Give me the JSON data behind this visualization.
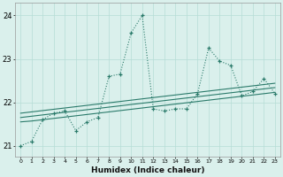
{
  "x": [
    0,
    1,
    2,
    3,
    4,
    5,
    6,
    7,
    8,
    9,
    10,
    11,
    12,
    13,
    14,
    15,
    16,
    17,
    18,
    19,
    20,
    21,
    22,
    23
  ],
  "y_main": [
    21.0,
    21.1,
    21.6,
    21.75,
    21.8,
    21.35,
    21.55,
    21.65,
    22.6,
    22.65,
    23.6,
    24.0,
    21.85,
    21.8,
    21.85,
    21.85,
    22.2,
    23.25,
    22.95,
    22.85,
    22.15,
    22.25,
    22.55,
    22.2
  ],
  "y_trend1": [
    21.75,
    21.78,
    21.81,
    21.84,
    21.87,
    21.9,
    21.93,
    21.96,
    21.99,
    22.02,
    22.05,
    22.08,
    22.11,
    22.14,
    22.17,
    22.2,
    22.23,
    22.26,
    22.29,
    22.32,
    22.35,
    22.38,
    22.41,
    22.44
  ],
  "y_trend2": [
    21.65,
    21.68,
    21.71,
    21.74,
    21.77,
    21.8,
    21.83,
    21.86,
    21.89,
    21.92,
    21.95,
    21.98,
    22.01,
    22.04,
    22.07,
    22.1,
    22.13,
    22.16,
    22.19,
    22.22,
    22.25,
    22.28,
    22.31,
    22.34
  ],
  "y_trend3": [
    21.55,
    21.57,
    21.6,
    21.63,
    21.66,
    21.69,
    21.72,
    21.75,
    21.78,
    21.81,
    21.84,
    21.87,
    21.9,
    21.93,
    21.96,
    21.99,
    22.02,
    22.05,
    22.08,
    22.11,
    22.14,
    22.17,
    22.2,
    22.23
  ],
  "line_color": "#2a7a6a",
  "bg_color": "#daf0ec",
  "grid_color": "#b5ddd6",
  "xlabel": "Humidex (Indice chaleur)",
  "ylim": [
    20.75,
    24.3
  ],
  "xlim": [
    -0.5,
    23.5
  ],
  "yticks": [
    21,
    22,
    23,
    24
  ],
  "xticks": [
    0,
    1,
    2,
    3,
    4,
    5,
    6,
    7,
    8,
    9,
    10,
    11,
    12,
    13,
    14,
    15,
    16,
    17,
    18,
    19,
    20,
    21,
    22,
    23
  ]
}
